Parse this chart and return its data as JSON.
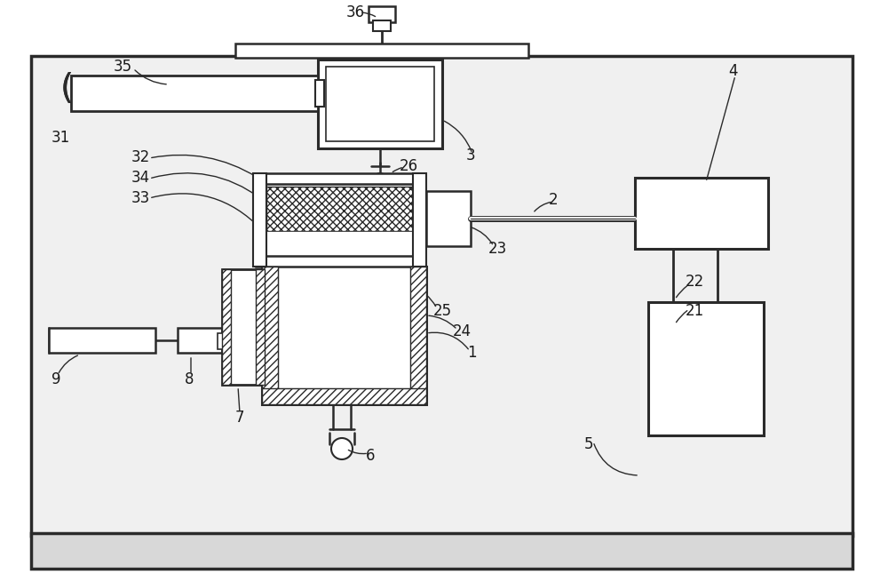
{
  "bg_outer": "#e8e8e8",
  "bg_inner": "#f7f7f7",
  "lc": "#2a2a2a",
  "lw_main": 1.8,
  "lw_thick": 2.2,
  "hatch_scale": 2.0
}
